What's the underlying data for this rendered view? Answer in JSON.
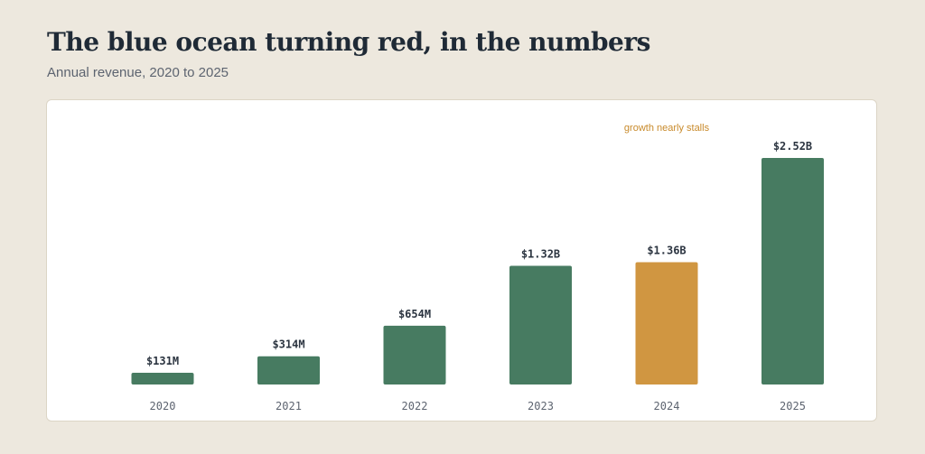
{
  "page": {
    "title": "The blue ocean turning red, in the numbers",
    "subtitle": "Annual revenue, 2020 to 2025"
  },
  "chart_data": {
    "type": "bar",
    "title": "",
    "xlabel": "",
    "ylabel": "",
    "categories": [
      "2020",
      "2021",
      "2022",
      "2023",
      "2024",
      "2025"
    ],
    "values": [
      131,
      314,
      654,
      1320,
      1360,
      2520
    ],
    "value_labels": [
      "$131M",
      "$314M",
      "$654M",
      "$1.32B",
      "$1.36B",
      "$2.52B"
    ],
    "units": "millions USD",
    "highlight_index": 4,
    "annotation": {
      "text": "growth nearly stalls",
      "category": "2024"
    },
    "grid": false,
    "colors": {
      "default_bar": "#477b61",
      "highlight_bar": "#d09641",
      "annotation": "#c88a2b"
    }
  }
}
